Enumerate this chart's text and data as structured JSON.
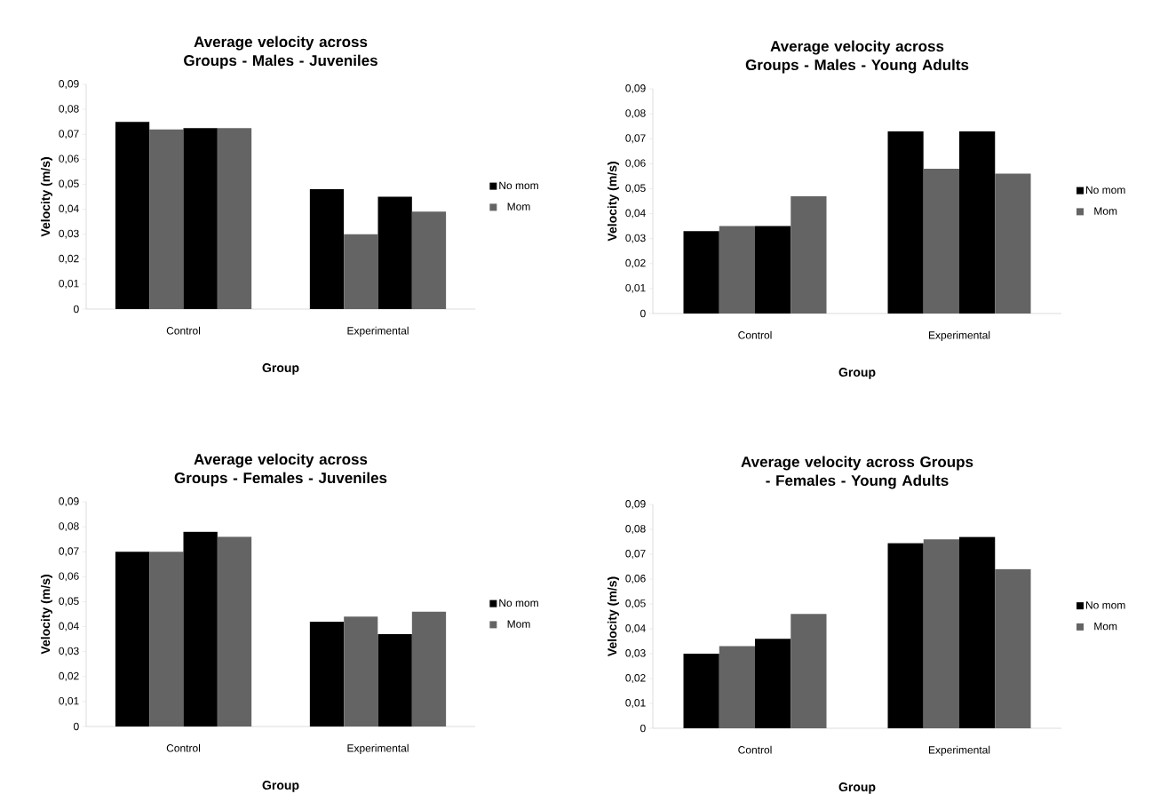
{
  "chart_data": [
    {
      "type": "bar",
      "title": "Average velocity across Groups - Males - Juveniles",
      "xlabel": "Group",
      "ylabel": "Velocity (m/s)",
      "categories": [
        "Control",
        "Experimental"
      ],
      "legend": "right",
      "ylim": [
        0,
        0.09
      ],
      "yticks": [
        0,
        {
          "value": 0.01,
          "label": "0,01"
        },
        {
          "value": 0.02,
          "label": "0,02"
        },
        {
          "value": 0.03,
          "label": "0,03"
        },
        {
          "value": 0.04,
          "label": "0,04"
        },
        {
          "value": 0.05,
          "label": "0,05"
        },
        {
          "value": 0.06,
          "label": "0,06"
        },
        {
          "value": 0.07,
          "label": "0,07"
        },
        {
          "value": 0.08,
          "label": "0,08"
        },
        {
          "value": 0.09,
          "label": "0,09"
        }
      ],
      "series": [
        {
          "name": "No mom",
          "color": "#000000",
          "values": [
            0.075,
            0.048
          ]
        },
        {
          "name": "Mom",
          "color": "#646464",
          "values": [
            0.072,
            0.03
          ]
        },
        {
          "color": "#000000",
          "values": [
            0.0725,
            0.045
          ]
        },
        {
          "color": "#646464",
          "values": [
            0.0725,
            0.039
          ]
        }
      ]
    },
    {
      "type": "bar",
      "title": "Average velocity across Groups - Males - Young Adults",
      "xlabel": "Group",
      "ylabel": "Velocity (m/s)",
      "categories": [
        "Control",
        "Experimental"
      ],
      "legend": "right",
      "ylim": [
        0,
        0.09
      ],
      "yticks": [
        0,
        {
          "value": 0.01,
          "label": "0,01"
        },
        {
          "value": 0.02,
          "label": "0,02"
        },
        {
          "value": 0.03,
          "label": "0,03"
        },
        {
          "value": 0.04,
          "label": "0,04"
        },
        {
          "value": 0.05,
          "label": "0,05"
        },
        {
          "value": 0.06,
          "label": "0,06"
        },
        {
          "value": 0.07,
          "label": "0,07"
        },
        {
          "value": 0.08,
          "label": "0,08"
        },
        {
          "value": 0.09,
          "label": "0,09"
        }
      ],
      "series": [
        {
          "name": "No mom",
          "color": "#000000",
          "values": [
            0.033,
            0.073
          ]
        },
        {
          "name": "Mom",
          "color": "#646464",
          "values": [
            0.035,
            0.058
          ]
        },
        {
          "color": "#000000",
          "values": [
            0.035,
            0.073
          ]
        },
        {
          "color": "#646464",
          "values": [
            0.047,
            0.056
          ]
        }
      ]
    },
    {
      "type": "bar",
      "title": "Average velocity across Groups - Females - Juveniles",
      "xlabel": "Group",
      "ylabel": "Velocity (m/s)",
      "categories": [
        "Control",
        "Experimental"
      ],
      "legend": "right",
      "ylim": [
        0,
        0.09
      ],
      "yticks": [
        0,
        {
          "value": 0.01,
          "label": "0,01"
        },
        {
          "value": 0.02,
          "label": "0,02"
        },
        {
          "value": 0.03,
          "label": "0,03"
        },
        {
          "value": 0.04,
          "label": "0,04"
        },
        {
          "value": 0.05,
          "label": "0,05"
        },
        {
          "value": 0.06,
          "label": "0,06"
        },
        {
          "value": 0.07,
          "label": "0,07"
        },
        {
          "value": 0.08,
          "label": "0,08"
        },
        {
          "value": 0.09,
          "label": "0,09"
        }
      ],
      "series": [
        {
          "name": "No mom",
          "color": "#000000",
          "values": [
            0.07,
            0.042
          ]
        },
        {
          "name": "Mom",
          "color": "#646464",
          "values": [
            0.07,
            0.044
          ]
        },
        {
          "color": "#000000",
          "values": [
            0.078,
            0.037
          ]
        },
        {
          "color": "#646464",
          "values": [
            0.076,
            0.046
          ]
        }
      ]
    },
    {
      "type": "bar",
      "title": "Average velocity across Groups - Females - Young Adults",
      "xlabel": "Group",
      "ylabel": "Velocity (m/s)",
      "categories": [
        "Control",
        "Experimental"
      ],
      "legend": "right",
      "ylim": [
        0,
        0.09
      ],
      "yticks": [
        0,
        {
          "value": 0.01,
          "label": "0,01"
        },
        {
          "value": 0.02,
          "label": "0,02"
        },
        {
          "value": 0.03,
          "label": "0,03"
        },
        {
          "value": 0.04,
          "label": "0,04"
        },
        {
          "value": 0.05,
          "label": "0,05"
        },
        {
          "value": 0.06,
          "label": "0,06"
        },
        {
          "value": 0.07,
          "label": "0,07"
        },
        {
          "value": 0.08,
          "label": "0,08"
        },
        {
          "value": 0.09,
          "label": "0,09"
        }
      ],
      "series": [
        {
          "name": "No mom",
          "color": "#000000",
          "values": [
            0.03,
            0.0745
          ]
        },
        {
          "name": "Mom",
          "color": "#646464",
          "values": [
            0.033,
            0.076
          ]
        },
        {
          "color": "#000000",
          "values": [
            0.036,
            0.077
          ]
        },
        {
          "color": "#646464",
          "values": [
            0.046,
            0.064
          ]
        }
      ]
    }
  ]
}
